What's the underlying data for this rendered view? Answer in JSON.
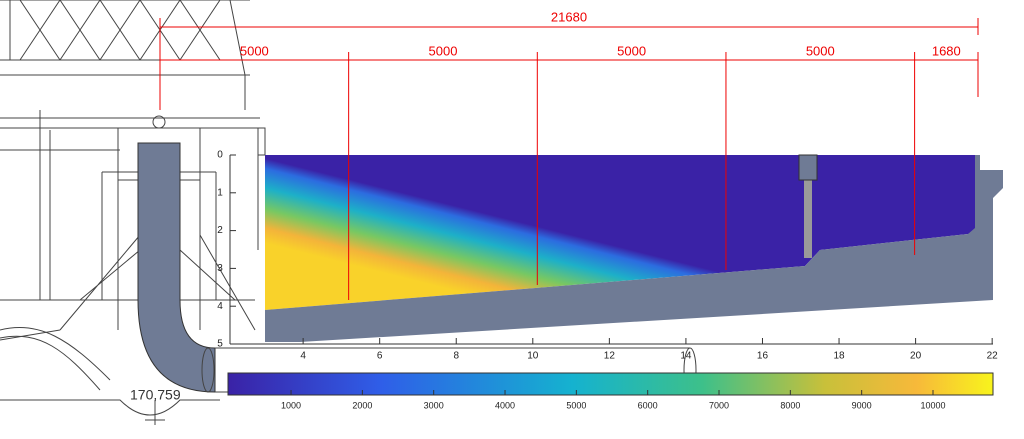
{
  "dimensions": {
    "total": 21680,
    "segments": [
      5000,
      5000,
      5000,
      5000,
      1680
    ]
  },
  "depth_axis": {
    "ticks": [
      0,
      1,
      2,
      3,
      4,
      5
    ]
  },
  "x_axis": {
    "ticks": [
      4,
      6,
      8,
      10,
      12,
      14,
      16,
      18,
      20,
      22
    ]
  },
  "colorbar": {
    "ticks": [
      1000,
      2000,
      3000,
      4000,
      5000,
      6000,
      7000,
      8000,
      9000,
      10000
    ]
  },
  "elevation_label": "170,759"
}
